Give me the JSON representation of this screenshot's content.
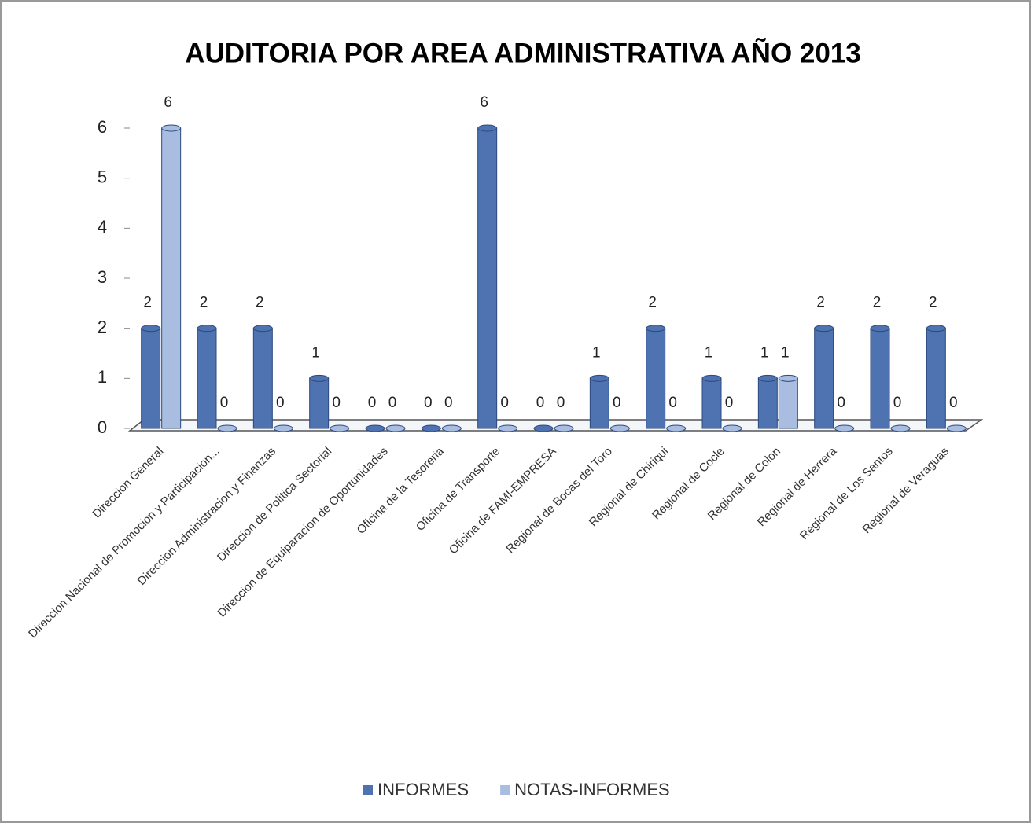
{
  "chart_data": {
    "type": "bar",
    "title": "AUDITORIA  POR  AREA  ADMINISTRATIVA  AÑO 2013",
    "categories": [
      "Direccion General",
      "Direccion Nacional de Promocion y Participacion...",
      "Direccion Administracion y Finanzas",
      "Direccion de Politica Sectorial",
      "Direccion de Equiparacion de Oportunidades",
      "Oficina de la Tesoreria",
      "Oficina de Transporte",
      "Oficina de FAMI-EMPRESA",
      "Regional de Bocas del Toro",
      "Regional de Chiriqui",
      "Regional de Cocle",
      "Regional de Colon",
      "Regional de Herrera",
      "Regional de Los Santos",
      "Regional de Veraguas"
    ],
    "series": [
      {
        "name": "INFORMES",
        "color": "#4f72b0",
        "values": [
          2,
          2,
          2,
          1,
          0,
          0,
          6,
          0,
          1,
          2,
          1,
          1,
          2,
          2,
          2
        ]
      },
      {
        "name": "NOTAS-INFORMES",
        "color": "#a9bde0",
        "values": [
          6,
          0,
          0,
          0,
          0,
          0,
          0,
          0,
          0,
          0,
          0,
          1,
          0,
          0,
          0
        ]
      }
    ],
    "ylim": [
      0,
      6
    ],
    "yticks": [
      0,
      1,
      2,
      3,
      4,
      5,
      6
    ],
    "grid": false,
    "legend": "bottom"
  }
}
